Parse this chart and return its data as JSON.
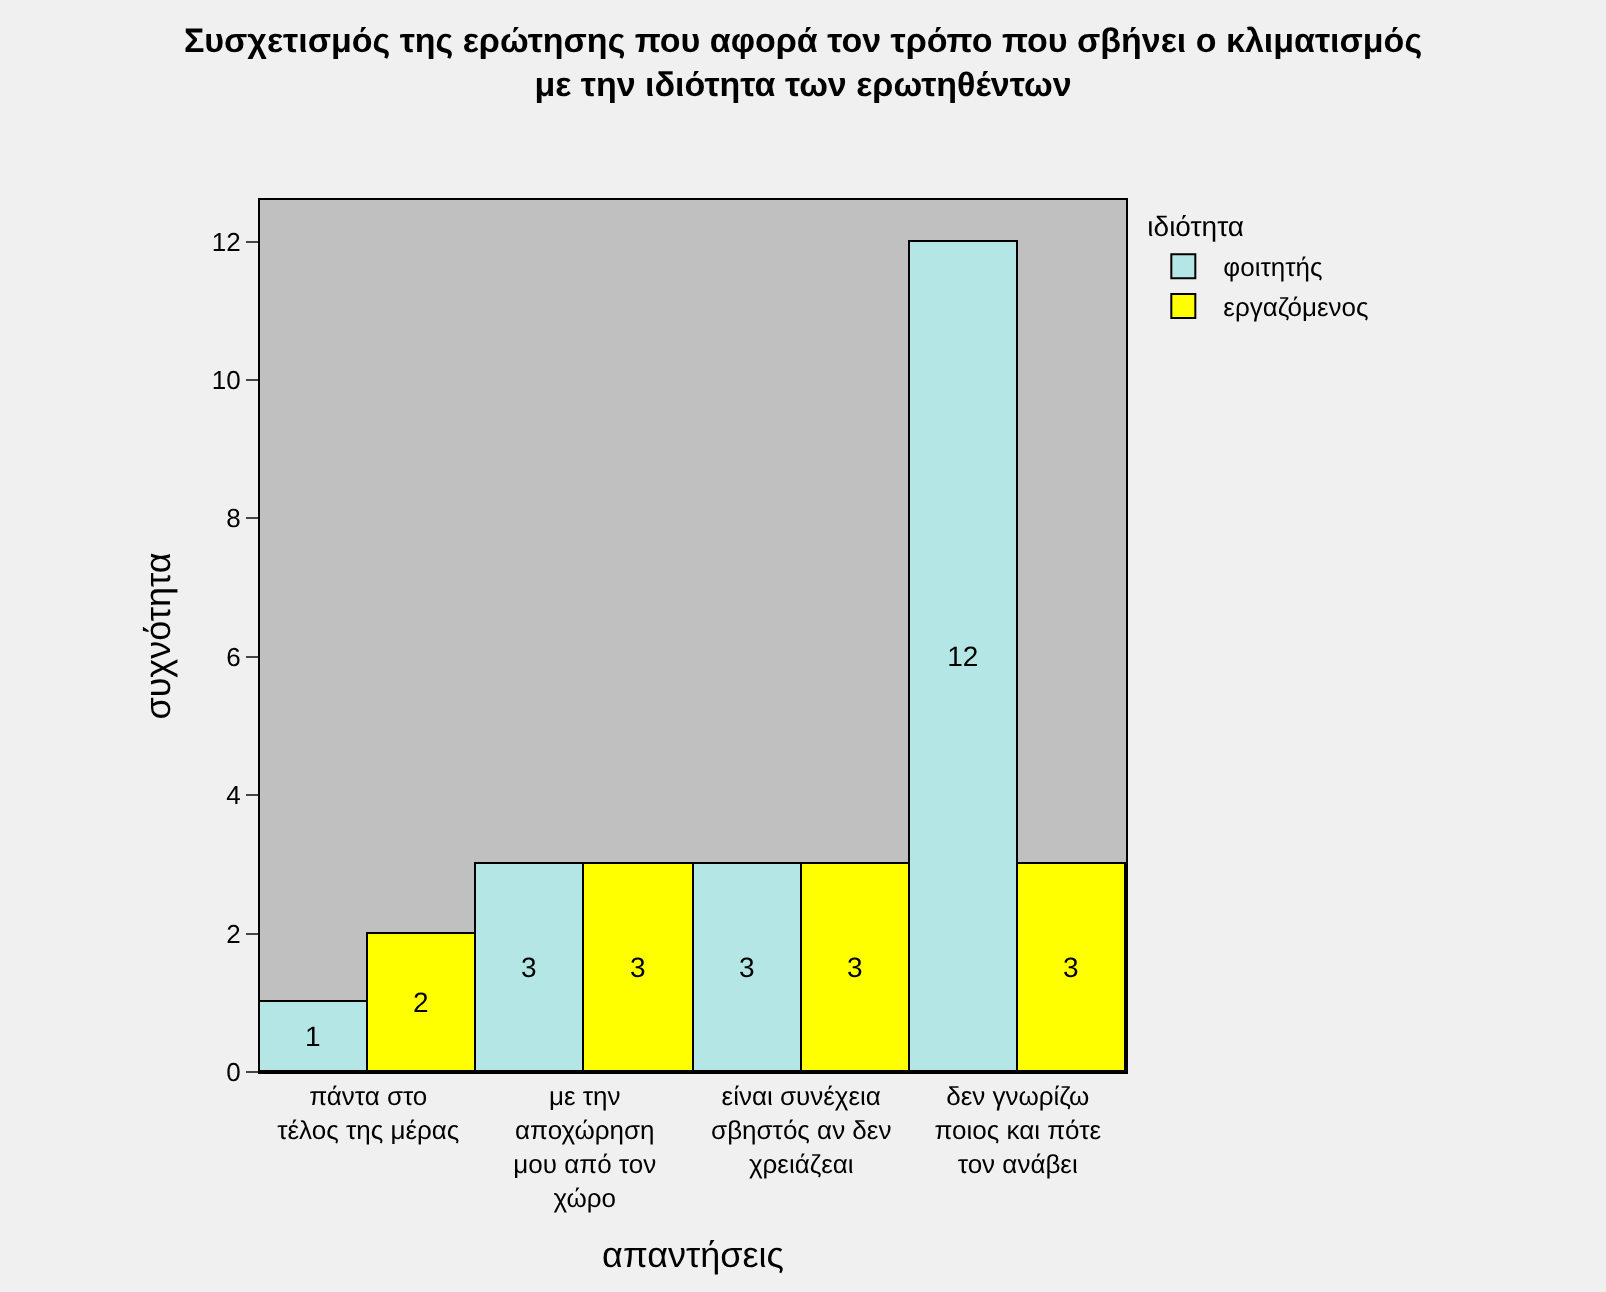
{
  "chart_data": {
    "type": "bar",
    "title": "Συσχετισμός της ερώτησης που αφορά τον τρόπο που σβήνει ο κλιματισμός\nμε την ιδιότητα των ερωτηθέντων",
    "xlabel": "απαντήσεις",
    "ylabel": "συχνότητα",
    "legend_title": "ιδιότητα",
    "categories": [
      "πάντα στο\nτέλος της μέρας",
      "με την\nαποχώρηση\nμου από τον\nχώρο",
      "είναι συνέχεια\nσβηστός αν δεν\nχρειάζεαι",
      "δεν γνωρίζω\nποιος και πότε\nτον ανάβει"
    ],
    "series": [
      {
        "name": "φοιτητής",
        "color": "#b4e6e6",
        "values": [
          1,
          3,
          3,
          12
        ]
      },
      {
        "name": "εργαζόμενος",
        "color": "#ffff00",
        "values": [
          2,
          3,
          3,
          3
        ]
      }
    ],
    "ylim": [
      0,
      12.6
    ],
    "yticks": [
      0,
      2,
      4,
      6,
      8,
      10,
      12
    ],
    "data_labels": true,
    "grid": false,
    "legend": "top right"
  }
}
